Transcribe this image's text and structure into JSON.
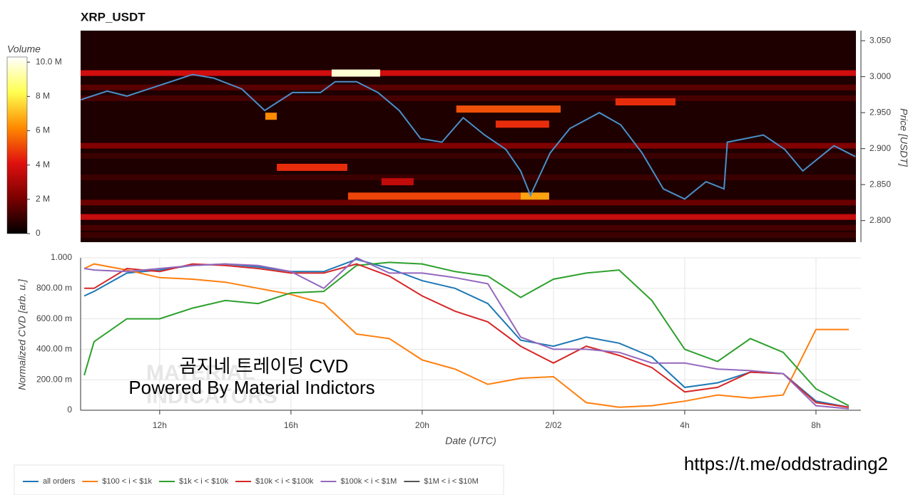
{
  "chart_data": [
    {
      "type": "heatmap",
      "title": "XRP_USDT",
      "y_label": "Price [USDT]",
      "colorbar_label": "Volume",
      "xlim": [
        9.59,
        33.22
      ],
      "ylim": [
        2.77,
        3.064
      ],
      "yticks": [
        {
          "value": 2.8,
          "label": "2.800"
        },
        {
          "value": 2.85,
          "label": "2.850"
        },
        {
          "value": 2.9,
          "label": "2.900"
        },
        {
          "value": 2.95,
          "label": "2.950"
        },
        {
          "value": 3.0,
          "label": "3.000"
        },
        {
          "value": 3.05,
          "label": "3.050"
        }
      ],
      "clim": [
        0,
        10.3
      ],
      "cticks": [
        0,
        {
          "value": 2,
          "label": "2 M"
        },
        {
          "value": 4,
          "label": "4 M"
        },
        {
          "value": 6,
          "label": "6 M"
        },
        {
          "value": 8,
          "label": "8 M"
        },
        {
          "value": 10,
          "label": "10.0 M"
        }
      ],
      "colormap": [
        "#000000",
        "#7a0000",
        "#e01010",
        "#ff8a00",
        "#ffff50",
        "#ffffff"
      ],
      "bands": [
        {
          "price": 3.005,
          "volume": 3.8
        },
        {
          "price": 2.985,
          "volume": 1.5
        },
        {
          "price": 2.97,
          "volume": 1.2
        },
        {
          "price": 2.904,
          "volume": 2.2
        },
        {
          "price": 2.89,
          "volume": 1.0
        },
        {
          "price": 2.86,
          "volume": 1.0
        },
        {
          "price": 2.825,
          "volume": 1.8
        },
        {
          "price": 2.805,
          "volume": 3.6
        },
        {
          "price": 2.79,
          "volume": 1.2
        },
        {
          "price": 2.78,
          "volume": 1.0
        }
      ],
      "walls": [
        {
          "start": 17.24,
          "end": 18.72,
          "price": 3.005,
          "volume": 9.8
        },
        {
          "start": 21.04,
          "end": 24.22,
          "price": 2.955,
          "volume": 5.2
        },
        {
          "start": 25.89,
          "end": 27.72,
          "price": 2.965,
          "volume": 4.6
        },
        {
          "start": 22.24,
          "end": 23.87,
          "price": 2.934,
          "volume": 4.6
        },
        {
          "start": 15.57,
          "end": 17.72,
          "price": 2.874,
          "volume": 4.6
        },
        {
          "start": 17.74,
          "end": 23.0,
          "price": 2.834,
          "volume": 5.0
        },
        {
          "start": 23.0,
          "end": 23.87,
          "price": 2.834,
          "volume": 6.6
        },
        {
          "start": 18.76,
          "end": 19.74,
          "price": 2.854,
          "volume": 3.5
        },
        {
          "start": 15.22,
          "end": 15.57,
          "price": 2.945,
          "volume": 6.2
        }
      ],
      "series": [
        {
          "color": "#4a8fc8",
          "x": [
            9.6,
            10.4,
            11.0,
            12.0,
            13.0,
            13.65,
            14.5,
            15.2,
            16.05,
            16.9,
            17.35,
            18.0,
            18.65,
            19.3,
            19.95,
            20.6,
            21.25,
            21.9,
            22.55,
            23.0,
            23.3,
            23.9,
            24.5,
            25.4,
            26.05,
            26.7,
            27.35,
            28.0,
            28.65,
            29.2,
            29.3,
            30.4,
            31.05,
            31.6,
            32.55,
            33.2
          ],
          "values": [
            2.968,
            2.98,
            2.973,
            2.988,
            3.003,
            2.998,
            2.983,
            2.953,
            2.978,
            2.978,
            2.993,
            2.993,
            2.978,
            2.953,
            2.914,
            2.909,
            2.943,
            2.919,
            2.899,
            2.869,
            2.835,
            2.894,
            2.928,
            2.95,
            2.933,
            2.894,
            2.844,
            2.83,
            2.854,
            2.844,
            2.909,
            2.919,
            2.899,
            2.869,
            2.904,
            2.889
          ]
        }
      ]
    },
    {
      "type": "line",
      "x_label": "Date (UTC)",
      "y_label": "Normalized CVD [arb. u.]",
      "xlim": [
        9.59,
        33.37
      ],
      "ylim": [
        0,
        1
      ],
      "xticks": [
        {
          "value": 12,
          "label": "12h"
        },
        {
          "value": 16,
          "label": "16h"
        },
        {
          "value": 20,
          "label": "20h"
        },
        {
          "value": 24,
          "label": "2/02"
        },
        {
          "value": 28,
          "label": "4h"
        },
        {
          "value": 32,
          "label": "8h"
        }
      ],
      "yticks": [
        0,
        {
          "value": 0.2,
          "label": "200.00 m"
        },
        {
          "value": 0.4,
          "label": "400.00 m"
        },
        {
          "value": 0.6,
          "label": "600.00 m"
        },
        {
          "value": 0.8,
          "label": "800.00 m"
        },
        {
          "value": 1,
          "label": "1.000"
        }
      ],
      "grid": true,
      "legend": "bottom-left",
      "x": [
        9.7,
        10,
        11,
        12,
        13,
        14,
        15,
        16,
        17,
        18,
        19,
        20,
        21,
        22,
        23,
        24,
        25,
        26,
        27,
        28,
        29,
        30,
        31,
        32,
        33
      ],
      "series": [
        {
          "name": "all orders",
          "color": "#1f77b4",
          "values": [
            0.75,
            0.78,
            0.9,
            0.92,
            0.95,
            0.96,
            0.94,
            0.91,
            0.91,
            0.99,
            0.93,
            0.85,
            0.8,
            0.7,
            0.46,
            0.42,
            0.48,
            0.44,
            0.35,
            0.15,
            0.18,
            0.25,
            0.24,
            0.06,
            0.02
          ]
        },
        {
          "name": "$100 < i < $1k",
          "color": "#ff7f0e",
          "values": [
            0.93,
            0.96,
            0.92,
            0.87,
            0.86,
            0.84,
            0.8,
            0.76,
            0.7,
            0.5,
            0.47,
            0.33,
            0.27,
            0.17,
            0.21,
            0.22,
            0.05,
            0.02,
            0.03,
            0.06,
            0.1,
            0.08,
            0.1,
            0.53,
            0.53
          ]
        },
        {
          "name": "$1k < i < $10k",
          "color": "#2ca02c",
          "values": [
            0.23,
            0.45,
            0.6,
            0.6,
            0.67,
            0.72,
            0.7,
            0.77,
            0.78,
            0.95,
            0.97,
            0.96,
            0.91,
            0.88,
            0.74,
            0.86,
            0.9,
            0.92,
            0.72,
            0.4,
            0.32,
            0.47,
            0.38,
            0.14,
            0.03
          ]
        },
        {
          "name": "$10k < i < $100k",
          "color": "#d62728",
          "values": [
            0.8,
            0.8,
            0.93,
            0.91,
            0.96,
            0.95,
            0.93,
            0.9,
            0.9,
            0.96,
            0.88,
            0.75,
            0.65,
            0.58,
            0.42,
            0.31,
            0.42,
            0.36,
            0.28,
            0.12,
            0.15,
            0.25,
            0.24,
            0.05,
            0.02
          ]
        },
        {
          "name": "$100k < i < $1M",
          "color": "#9467bd",
          "values": [
            0.93,
            0.92,
            0.91,
            0.93,
            0.95,
            0.96,
            0.95,
            0.91,
            0.8,
            1.0,
            0.9,
            0.9,
            0.87,
            0.83,
            0.48,
            0.4,
            0.4,
            0.38,
            0.31,
            0.31,
            0.27,
            0.26,
            0.24,
            0.03,
            0.01
          ]
        },
        {
          "name": "$1M < i < $10M",
          "color": "#555555",
          "values": [
            null,
            null,
            null,
            null,
            null,
            null,
            null,
            null,
            null,
            null,
            null,
            null,
            null,
            null,
            null,
            null,
            null,
            null,
            null,
            null,
            null,
            null,
            null,
            null,
            null
          ]
        }
      ],
      "annotations": [
        "곰지네 트레이딩 CVD",
        "Powered By Material Indictors",
        "MATERIAL",
        "INDICATORS"
      ]
    }
  ],
  "footer_link": "https://t.me/oddstrading2"
}
